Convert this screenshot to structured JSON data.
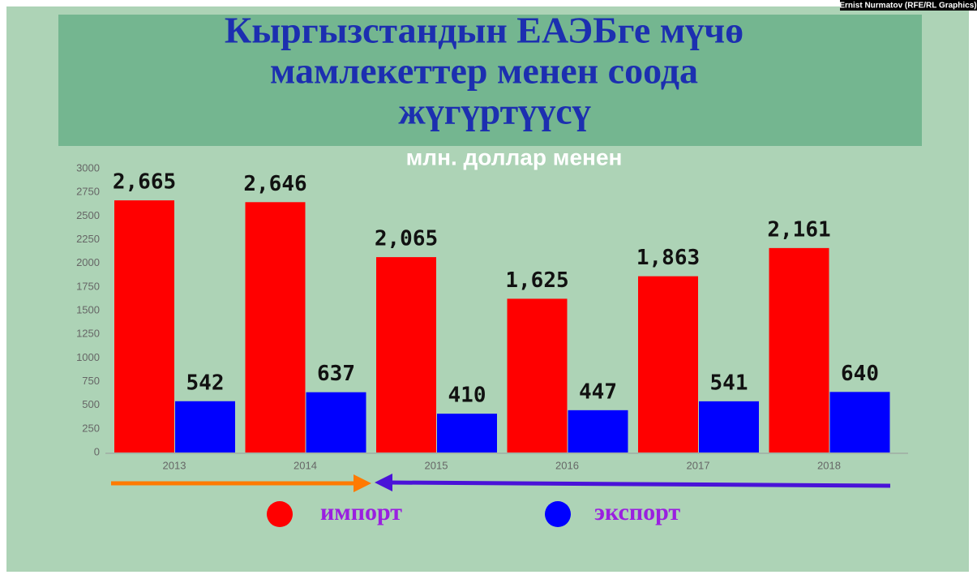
{
  "chart_data": {
    "type": "bar",
    "title": [
      "Кыргызстандын ЕАЭБге мүчө",
      "мамлекеттер менен соода",
      "жүгүртүүсү"
    ],
    "subtitle": "млн. доллар менен",
    "credit": "Ernist Nurmatov (RFE/RL Graphics)",
    "categories": [
      "2013",
      "2014",
      "2015",
      "2016",
      "2017",
      "2018"
    ],
    "series": [
      {
        "name": "импорт",
        "color": "#ff0000",
        "values": [
          2665,
          2646,
          2065,
          1625,
          1863,
          2161
        ],
        "value_labels": [
          "2,665",
          "2,646",
          "2,065",
          "1,625",
          "1,863",
          "2,161"
        ]
      },
      {
        "name": "экспорт",
        "color": "#0000ff",
        "values": [
          542,
          637,
          410,
          447,
          541,
          640
        ]
      }
    ],
    "ylim": [
      0,
      3000
    ],
    "yticks": [
      0,
      250,
      500,
      750,
      1000,
      1250,
      1500,
      1750,
      2000,
      2250,
      2500,
      2750,
      3000
    ],
    "grid": false
  }
}
